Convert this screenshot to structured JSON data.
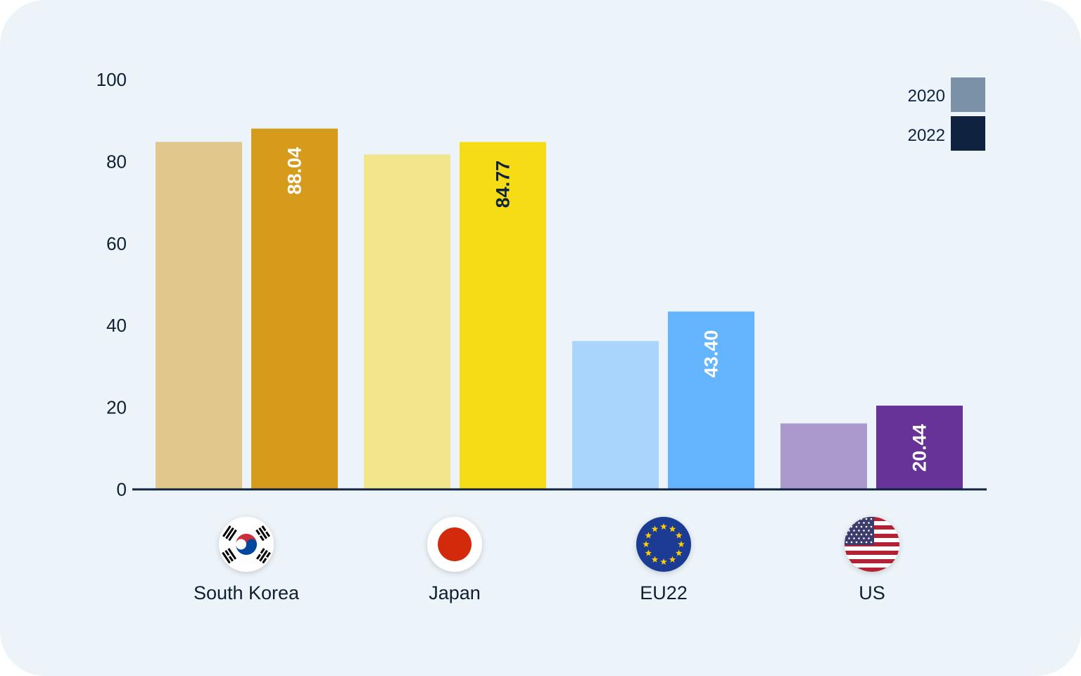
{
  "chart_data": {
    "type": "bar",
    "categories": [
      "South Korea",
      "Japan",
      "EU22",
      "US"
    ],
    "category_icons": [
      "south-korea-flag-icon",
      "japan-flag-icon",
      "eu-flag-icon",
      "us-flag-icon"
    ],
    "series": [
      {
        "name": "2020",
        "values": [
          84.8,
          81.7,
          36.2,
          16.1
        ],
        "colors": [
          "#e2c78c",
          "#f2e68c",
          "#a9d4fc",
          "#ab98cc"
        ],
        "legend_color": "#7a91a8"
      },
      {
        "name": "2022",
        "values": [
          88.04,
          84.77,
          43.4,
          20.44
        ],
        "labels": [
          "88.04",
          "84.77",
          "43.40",
          "20.44"
        ],
        "colors": [
          "#d79b1b",
          "#f5dc14",
          "#64b5fd",
          "#673399"
        ],
        "label_colors": [
          "#ffffff",
          "#0f2340",
          "#ffffff",
          "#ffffff"
        ],
        "legend_color": "#0f2340"
      }
    ],
    "ylim": [
      0,
      100
    ],
    "yticks": [
      0,
      20,
      40,
      60,
      80,
      100
    ],
    "ytick_labels": [
      "0",
      "20",
      "40",
      "60",
      "80",
      "100"
    ],
    "legend_position": "top-right",
    "grid": false
  }
}
